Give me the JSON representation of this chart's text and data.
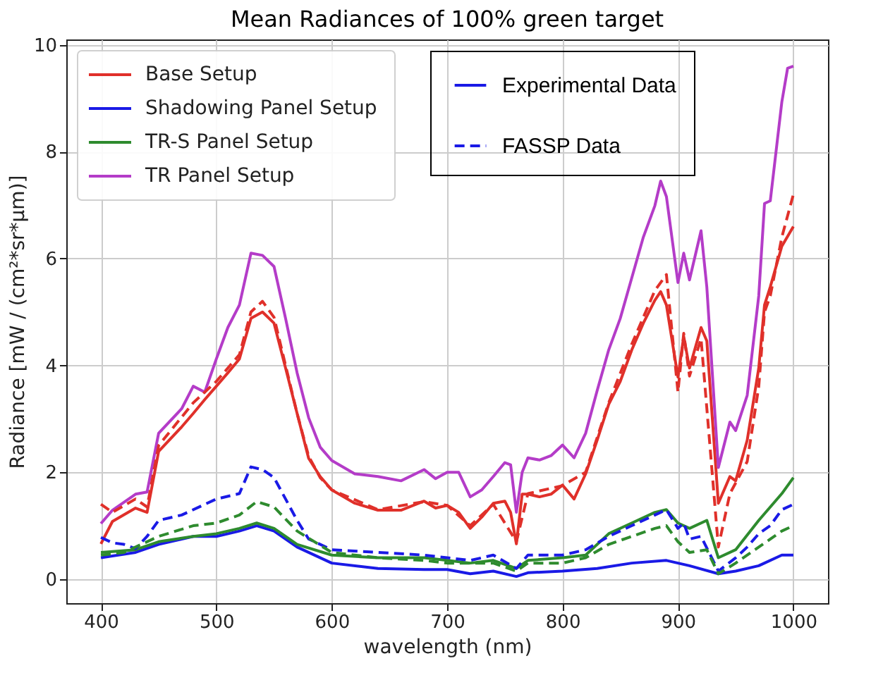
{
  "chart_data": {
    "type": "line",
    "title": "Mean Radiances of 100% green target",
    "xlabel": "wavelength (nm)",
    "ylabel": "Radiance [mW / (cm²*sr*µm)]",
    "xlim": [
      370,
      1030
    ],
    "ylim": [
      -0.45,
      10.1
    ],
    "xticks": [
      400,
      500,
      600,
      700,
      800,
      900,
      1000
    ],
    "yticks": [
      0,
      2,
      4,
      6,
      8,
      10
    ],
    "grid": true,
    "legend": "top left",
    "annotations": [
      "Experimental Data",
      "FASSP Data"
    ],
    "series": [
      {
        "name": "Base Setup",
        "color": "#e0302a",
        "line_style": "solid",
        "x": [
          400,
          410,
          430,
          440,
          450,
          470,
          480,
          490,
          500,
          510,
          520,
          530,
          540,
          550,
          560,
          570,
          580,
          590,
          600,
          620,
          640,
          660,
          680,
          690,
          700,
          710,
          720,
          730,
          740,
          750,
          755,
          760,
          765,
          770,
          780,
          790,
          800,
          810,
          820,
          830,
          840,
          850,
          860,
          870,
          880,
          885,
          890,
          900,
          905,
          910,
          920,
          925,
          935,
          945,
          950,
          960,
          970,
          975,
          980,
          990,
          1000
        ],
        "values": [
          0.66,
          1.08,
          1.33,
          1.25,
          2.39,
          2.85,
          3.1,
          3.36,
          3.61,
          3.86,
          4.12,
          4.88,
          5.0,
          4.79,
          3.95,
          3.1,
          2.26,
          1.92,
          1.67,
          1.42,
          1.29,
          1.29,
          1.46,
          1.33,
          1.38,
          1.25,
          0.95,
          1.16,
          1.42,
          1.46,
          1.25,
          0.66,
          1.59,
          1.59,
          1.54,
          1.59,
          1.76,
          1.5,
          1.97,
          2.6,
          3.27,
          3.7,
          4.29,
          4.79,
          5.22,
          5.38,
          5.13,
          3.78,
          4.54,
          3.95,
          4.71,
          4.46,
          1.42,
          1.92,
          1.84,
          2.6,
          3.95,
          5.13,
          5.47,
          6.23,
          6.6
        ]
      },
      {
        "name": "Shadowing Panel Setup",
        "color": "#1a1ae6",
        "line_style": "solid",
        "x": [
          400,
          430,
          450,
          480,
          500,
          520,
          535,
          550,
          570,
          600,
          640,
          680,
          700,
          720,
          740,
          760,
          770,
          800,
          830,
          860,
          890,
          910,
          935,
          950,
          970,
          990,
          1000
        ],
        "values": [
          0.4,
          0.5,
          0.65,
          0.8,
          0.8,
          0.9,
          1.0,
          0.9,
          0.6,
          0.3,
          0.2,
          0.18,
          0.18,
          0.1,
          0.15,
          0.05,
          0.12,
          0.15,
          0.2,
          0.3,
          0.35,
          0.25,
          0.1,
          0.15,
          0.25,
          0.45,
          0.45
        ]
      },
      {
        "name": "TR-S Panel Setup",
        "color": "#2e8b2e",
        "line_style": "solid",
        "x": [
          400,
          430,
          450,
          480,
          500,
          520,
          535,
          550,
          570,
          600,
          640,
          680,
          700,
          720,
          740,
          760,
          770,
          800,
          820,
          840,
          860,
          880,
          890,
          900,
          910,
          925,
          935,
          950,
          970,
          990,
          1000
        ],
        "values": [
          0.5,
          0.55,
          0.7,
          0.8,
          0.85,
          0.95,
          1.05,
          0.95,
          0.65,
          0.45,
          0.4,
          0.4,
          0.35,
          0.3,
          0.35,
          0.2,
          0.35,
          0.4,
          0.45,
          0.85,
          1.05,
          1.25,
          1.3,
          1.05,
          0.95,
          1.1,
          0.4,
          0.55,
          1.1,
          1.6,
          1.9
        ]
      },
      {
        "name": "TR Panel Setup",
        "color": "#b43cc8",
        "line_style": "solid",
        "x": [
          400,
          410,
          430,
          440,
          450,
          470,
          480,
          490,
          500,
          510,
          520,
          530,
          540,
          550,
          560,
          570,
          580,
          590,
          600,
          620,
          640,
          660,
          680,
          690,
          700,
          710,
          720,
          730,
          740,
          750,
          755,
          760,
          765,
          770,
          780,
          790,
          800,
          810,
          820,
          830,
          840,
          850,
          860,
          870,
          880,
          885,
          890,
          900,
          905,
          910,
          920,
          925,
          935,
          945,
          950,
          960,
          970,
          975,
          980,
          990,
          995,
          1000
        ],
        "values": [
          1.04,
          1.29,
          1.59,
          1.63,
          2.73,
          3.19,
          3.61,
          3.5,
          4.12,
          4.71,
          5.13,
          6.1,
          6.06,
          5.85,
          4.88,
          3.86,
          3.02,
          2.47,
          2.22,
          1.97,
          1.92,
          1.84,
          2.05,
          1.88,
          2.0,
          2.0,
          1.54,
          1.67,
          1.92,
          2.18,
          2.14,
          1.25,
          2.0,
          2.27,
          2.23,
          2.31,
          2.51,
          2.27,
          2.73,
          3.53,
          4.29,
          4.88,
          5.64,
          6.4,
          6.99,
          7.45,
          7.16,
          5.55,
          6.1,
          5.6,
          6.52,
          5.47,
          2.09,
          2.94,
          2.78,
          3.44,
          5.3,
          7.03,
          7.08,
          8.93,
          9.56,
          9.6
        ]
      },
      {
        "color": "#e0302a",
        "line_style": "dashed",
        "x": [
          400,
          410,
          430,
          440,
          450,
          480,
          500,
          520,
          530,
          540,
          550,
          560,
          570,
          580,
          590,
          600,
          640,
          680,
          700,
          720,
          740,
          760,
          770,
          800,
          820,
          840,
          860,
          880,
          890,
          900,
          905,
          910,
          920,
          935,
          945,
          960,
          970,
          975,
          980,
          990,
          1000
        ],
        "values": [
          1.4,
          1.25,
          1.5,
          1.35,
          2.5,
          3.3,
          3.7,
          4.2,
          5.0,
          5.2,
          4.9,
          4.0,
          3.1,
          2.3,
          1.9,
          1.67,
          1.3,
          1.45,
          1.38,
          1.0,
          1.4,
          0.7,
          1.6,
          1.75,
          2.0,
          3.3,
          4.4,
          5.4,
          5.7,
          3.5,
          4.6,
          3.8,
          4.5,
          0.6,
          1.6,
          2.2,
          3.6,
          5.0,
          5.3,
          6.4,
          7.2
        ]
      },
      {
        "color": "#1a1ae6",
        "line_style": "dashed",
        "x": [
          400,
          410,
          420,
          430,
          440,
          450,
          470,
          490,
          500,
          520,
          530,
          540,
          550,
          560,
          570,
          580,
          600,
          640,
          680,
          700,
          720,
          740,
          760,
          770,
          800,
          820,
          840,
          860,
          880,
          890,
          900,
          905,
          910,
          920,
          935,
          950,
          960,
          970,
          980,
          990,
          1000
        ],
        "values": [
          0.78,
          0.68,
          0.65,
          0.57,
          0.8,
          1.1,
          1.2,
          1.4,
          1.5,
          1.6,
          2.1,
          2.05,
          1.9,
          1.5,
          1.1,
          0.75,
          0.55,
          0.5,
          0.45,
          0.4,
          0.35,
          0.45,
          0.2,
          0.45,
          0.45,
          0.55,
          0.8,
          1.0,
          1.2,
          1.3,
          0.95,
          1.05,
          0.75,
          0.8,
          0.15,
          0.4,
          0.6,
          0.85,
          1.0,
          1.3,
          1.4
        ]
      },
      {
        "color": "#2e8b2e",
        "line_style": "dashed",
        "x": [
          400,
          420,
          450,
          480,
          500,
          520,
          535,
          550,
          570,
          600,
          640,
          680,
          700,
          720,
          740,
          760,
          770,
          800,
          820,
          840,
          860,
          880,
          890,
          900,
          910,
          925,
          935,
          950,
          970,
          990,
          1000
        ],
        "values": [
          0.45,
          0.5,
          0.8,
          1.0,
          1.05,
          1.2,
          1.45,
          1.35,
          0.9,
          0.5,
          0.4,
          0.35,
          0.3,
          0.3,
          0.3,
          0.15,
          0.3,
          0.3,
          0.4,
          0.65,
          0.8,
          0.95,
          1.0,
          0.7,
          0.5,
          0.55,
          0.1,
          0.3,
          0.6,
          0.9,
          1.0
        ]
      }
    ]
  }
}
